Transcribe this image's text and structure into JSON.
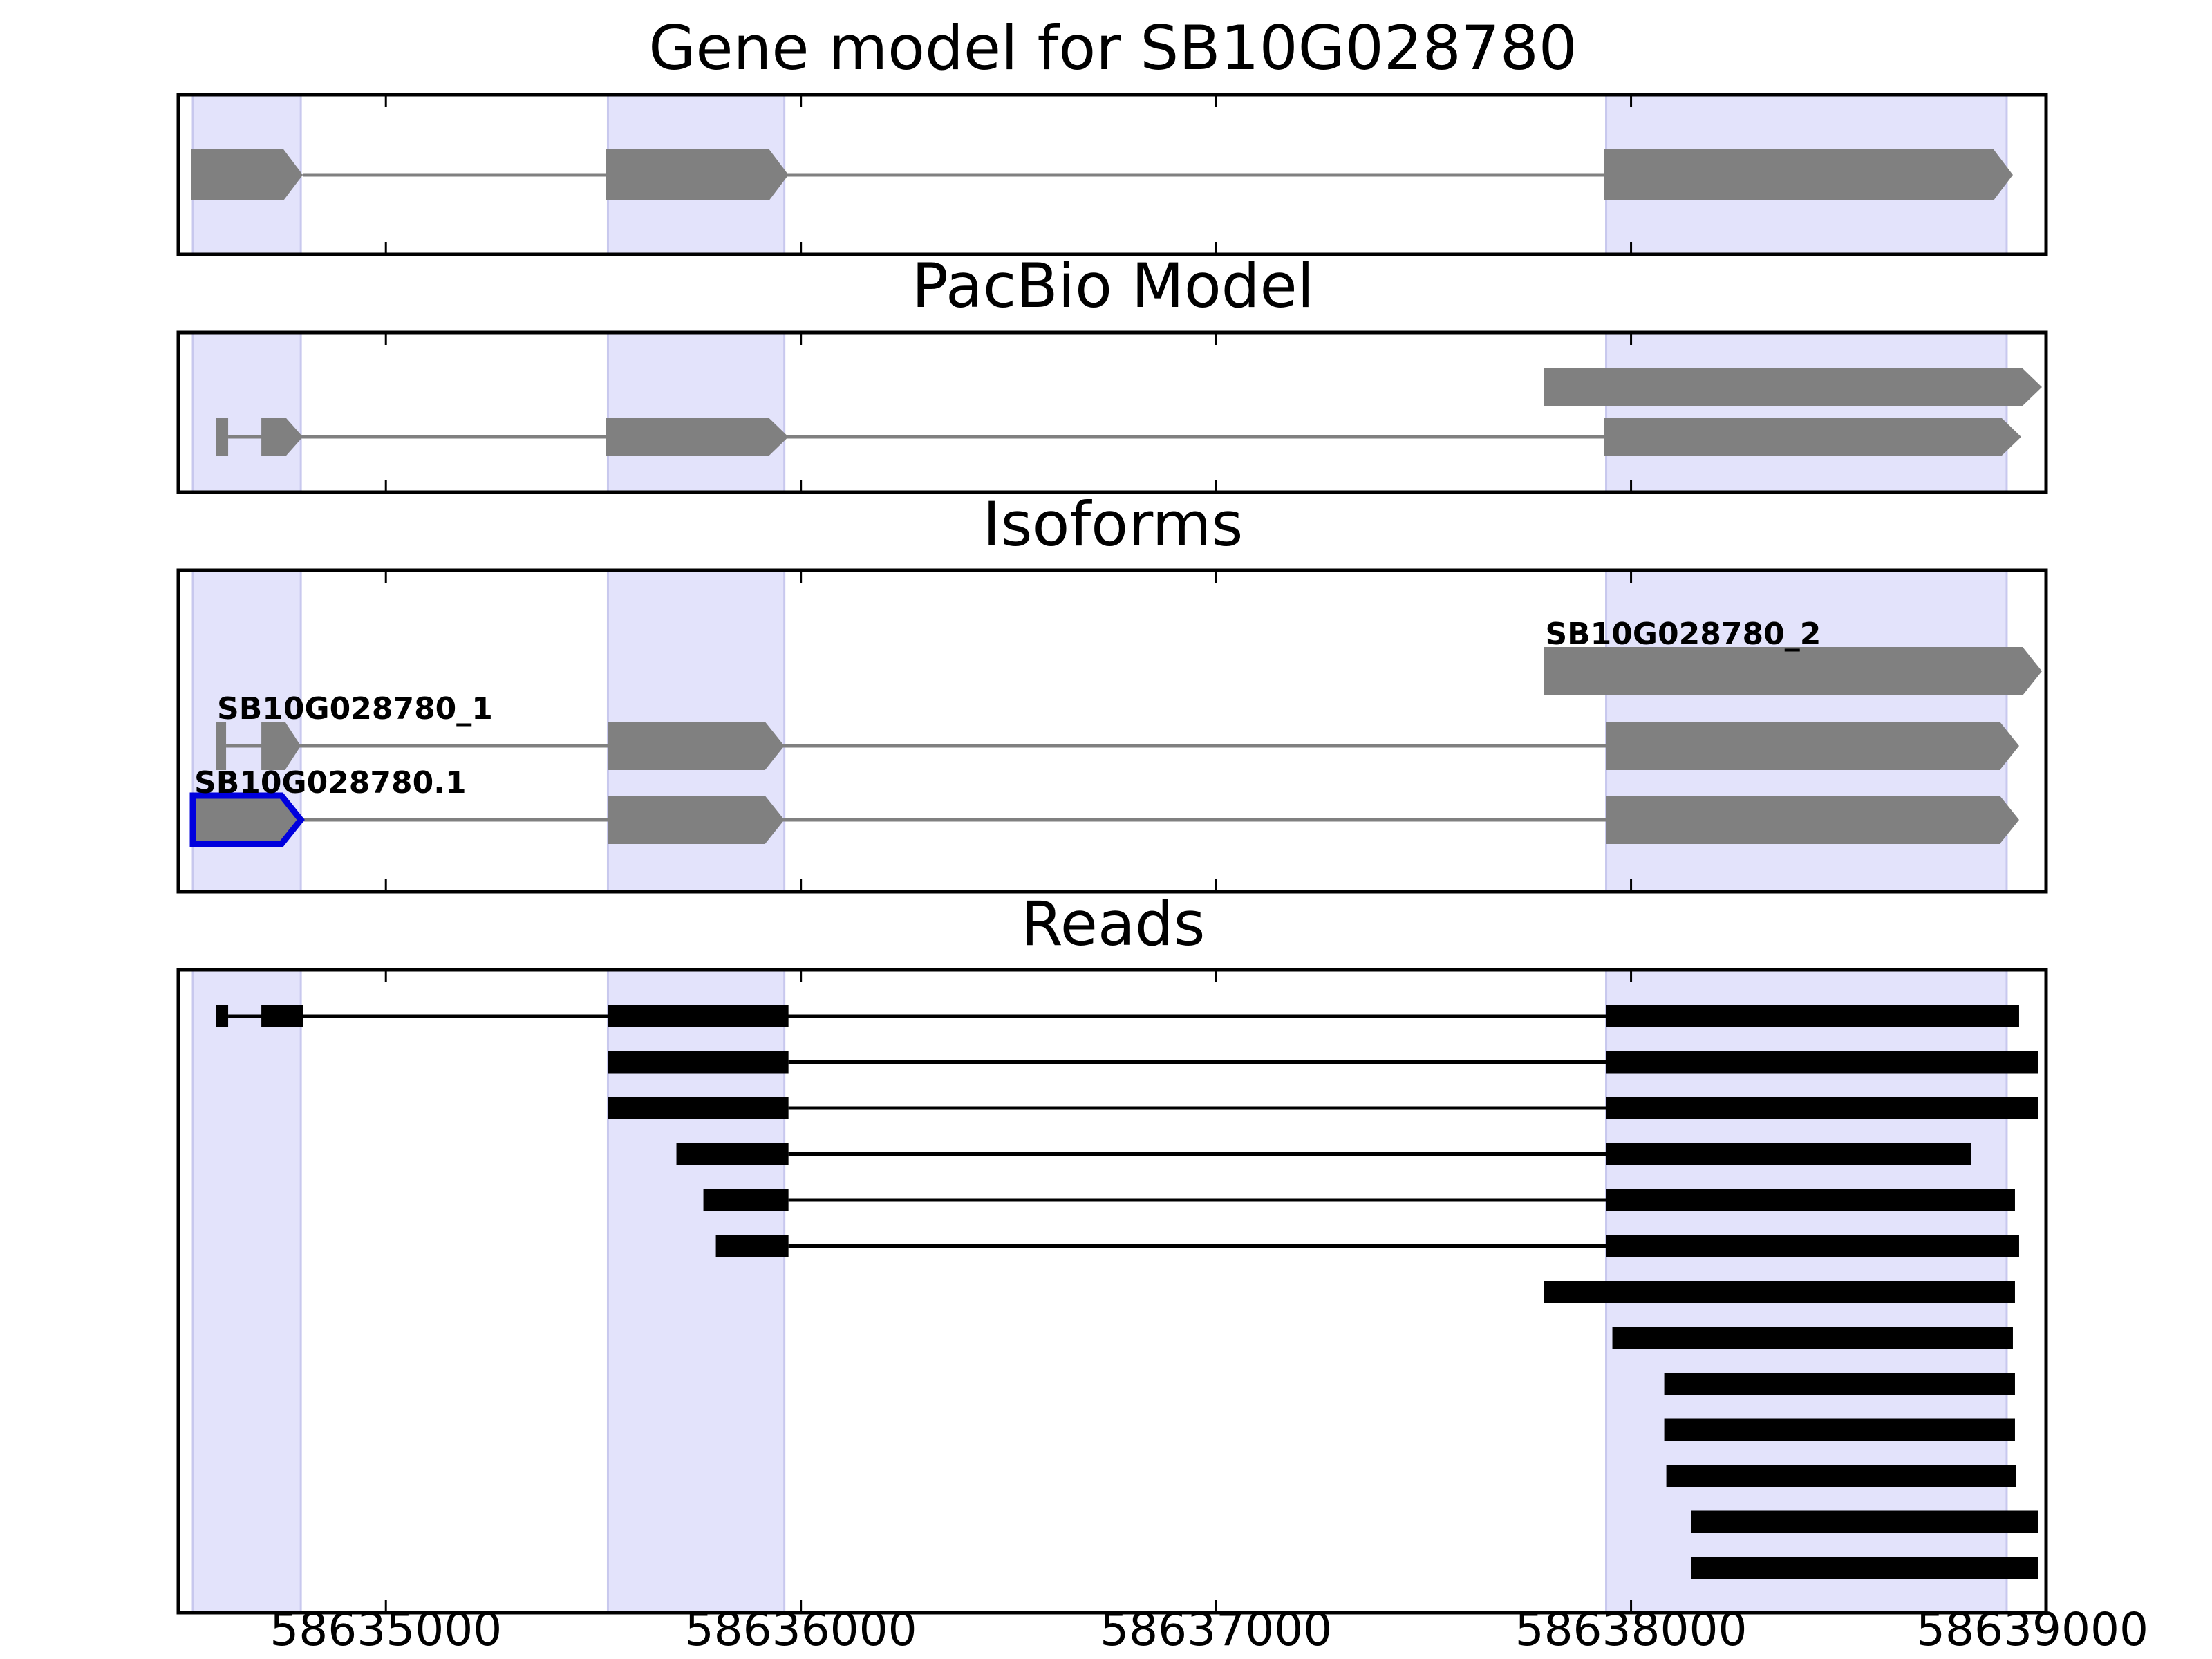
{
  "chart_data": {
    "type": "gene-track",
    "title": "Gene model for SB10G028780",
    "xlim": [
      58634500,
      58639000
    ],
    "x_ticks": [
      58635000,
      58636000,
      58637000,
      58638000,
      58639000
    ],
    "x_tick_labels": [
      "58635000",
      "58636000",
      "58637000",
      "58638000",
      "58639000"
    ],
    "shaded_regions": [
      [
        58634535,
        58634795
      ],
      [
        58635535,
        58635960
      ],
      [
        58637940,
        58638905
      ]
    ],
    "colors": {
      "shade": "#e3e3fb",
      "gene": "#808080",
      "read": "#000000",
      "highlight": "#0000dd",
      "intron": "#808080"
    },
    "panels": [
      {
        "id": "gene-model",
        "title": "Gene model for SB10G028780",
        "tracks": [
          {
            "strand": "+",
            "exons": [
              [
                58634530,
                58634800
              ],
              [
                58635530,
                58635970
              ],
              [
                58637935,
                58638920
              ]
            ]
          }
        ]
      },
      {
        "id": "pacbio",
        "title": "PacBio Model",
        "tracks": [
          {
            "strand": "+",
            "exons": [
              [
                58637790,
                58638990
              ]
            ]
          },
          {
            "strand": "+",
            "exons": [
              [
                58634590,
                58634620
              ],
              [
                58634700,
                58634800
              ],
              [
                58635530,
                58635970
              ],
              [
                58637935,
                58638940
              ]
            ]
          }
        ]
      },
      {
        "id": "isoforms",
        "title": "Isoforms",
        "tracks": [
          {
            "label": "SB10G028780_2",
            "strand": "+",
            "exons": [
              [
                58637790,
                58638990
              ]
            ]
          },
          {
            "label": "SB10G028780_1",
            "strand": "+",
            "exons": [
              [
                58634590,
                58634615
              ],
              [
                58634700,
                58634795
              ],
              [
                58635535,
                58635960
              ],
              [
                58637940,
                58638935
              ]
            ]
          },
          {
            "label": "SB10G028780.1",
            "strand": "+",
            "highlight_first": true,
            "exons": [
              [
                58634535,
                58634795
              ],
              [
                58635535,
                58635960
              ],
              [
                58637940,
                58638935
              ]
            ]
          }
        ]
      },
      {
        "id": "reads",
        "title": "Reads",
        "reads": [
          {
            "exons": [
              [
                58634590,
                58634620
              ],
              [
                58634700,
                58634800
              ],
              [
                58635535,
                58635970
              ],
              [
                58637940,
                58638935
              ]
            ]
          },
          {
            "exons": [
              [
                58635535,
                58635970
              ],
              [
                58637940,
                58638980
              ]
            ]
          },
          {
            "exons": [
              [
                58635535,
                58635970
              ],
              [
                58637940,
                58638980
              ]
            ]
          },
          {
            "exons": [
              [
                58635700,
                58635970
              ],
              [
                58637940,
                58638820
              ]
            ]
          },
          {
            "exons": [
              [
                58635765,
                58635970
              ],
              [
                58637940,
                58638925
              ]
            ]
          },
          {
            "exons": [
              [
                58635795,
                58635970
              ],
              [
                58637940,
                58638935
              ]
            ]
          },
          {
            "exons": [
              [
                58637790,
                58638925
              ]
            ]
          },
          {
            "exons": [
              [
                58637955,
                58638920
              ]
            ]
          },
          {
            "exons": [
              [
                58638080,
                58638925
              ]
            ]
          },
          {
            "exons": [
              [
                58638080,
                58638925
              ]
            ]
          },
          {
            "exons": [
              [
                58638085,
                58638928
              ]
            ]
          },
          {
            "exons": [
              [
                58638145,
                58638980
              ]
            ]
          },
          {
            "exons": [
              [
                58638145,
                58638980
              ]
            ]
          }
        ]
      }
    ]
  }
}
